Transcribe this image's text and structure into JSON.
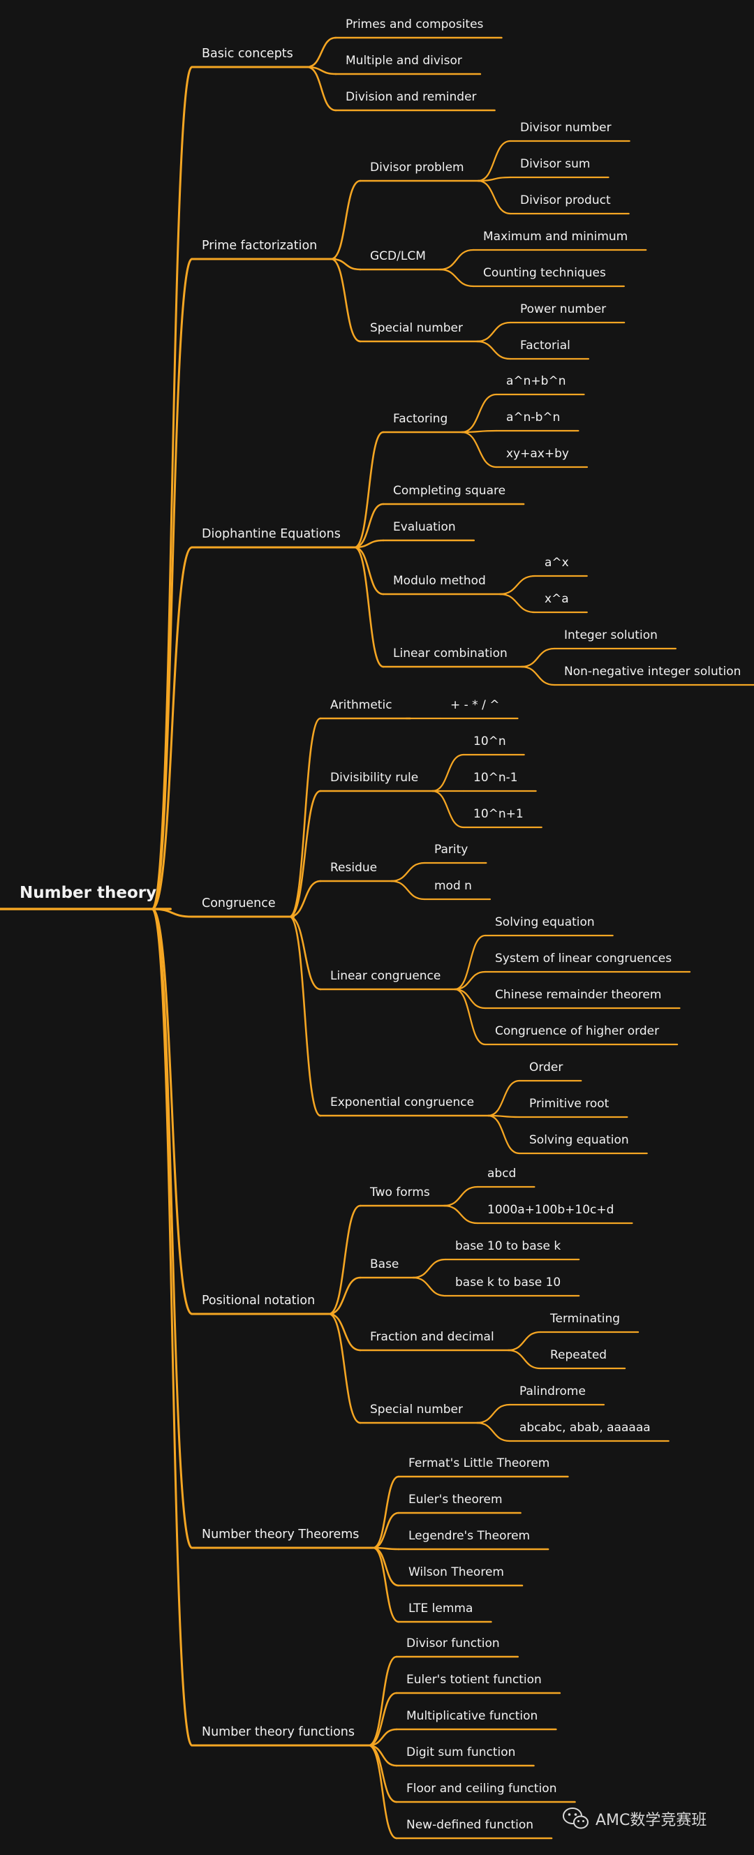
{
  "colors": {
    "background": "#141414",
    "branch": "#f5a623",
    "text": "#f2f2f2"
  },
  "mindmap": {
    "label": "Number theory",
    "children": [
      {
        "label": "Basic concepts",
        "children": [
          {
            "label": "Primes and composites"
          },
          {
            "label": "Multiple and divisor"
          },
          {
            "label": "Division and reminder"
          }
        ]
      },
      {
        "label": "Prime factorization",
        "children": [
          {
            "label": "Divisor problem",
            "children": [
              {
                "label": "Divisor number"
              },
              {
                "label": "Divisor sum"
              },
              {
                "label": "Divisor product"
              }
            ]
          },
          {
            "label": "GCD/LCM",
            "children": [
              {
                "label": "Maximum and minimum"
              },
              {
                "label": "Counting techniques"
              }
            ]
          },
          {
            "label": "Special number",
            "children": [
              {
                "label": "Power number"
              },
              {
                "label": "Factorial"
              }
            ]
          }
        ]
      },
      {
        "label": "Diophantine Equations",
        "children": [
          {
            "label": "Factoring",
            "children": [
              {
                "label": "a^n+b^n"
              },
              {
                "label": "a^n-b^n"
              },
              {
                "label": "xy+ax+by"
              }
            ]
          },
          {
            "label": "Completing square"
          },
          {
            "label": "Evaluation"
          },
          {
            "label": "Modulo method",
            "children": [
              {
                "label": "a^x"
              },
              {
                "label": "x^a"
              }
            ]
          },
          {
            "label": "Linear combination",
            "children": [
              {
                "label": "Integer solution"
              },
              {
                "label": "Non-negative integer solution"
              }
            ]
          }
        ]
      },
      {
        "label": "Congruence",
        "children": [
          {
            "label": "Arithmetic",
            "children": [
              {
                "label": "+ - * / ^"
              }
            ]
          },
          {
            "label": "Divisibility rule",
            "children": [
              {
                "label": "10^n"
              },
              {
                "label": "10^n-1"
              },
              {
                "label": "10^n+1"
              }
            ]
          },
          {
            "label": "Residue",
            "children": [
              {
                "label": "Parity"
              },
              {
                "label": "mod n"
              }
            ]
          },
          {
            "label": "Linear congruence",
            "children": [
              {
                "label": "Solving equation"
              },
              {
                "label": "System of linear congruences"
              },
              {
                "label": "Chinese remainder theorem"
              },
              {
                "label": "Congruence of higher order"
              }
            ]
          },
          {
            "label": "Exponential congruence",
            "children": [
              {
                "label": "Order"
              },
              {
                "label": "Primitive root"
              },
              {
                "label": "Solving equation"
              }
            ]
          }
        ]
      },
      {
        "label": "Positional notation",
        "children": [
          {
            "label": "Two forms",
            "children": [
              {
                "label": "abcd"
              },
              {
                "label": "1000a+100b+10c+d"
              }
            ]
          },
          {
            "label": "Base",
            "children": [
              {
                "label": "base 10 to base k"
              },
              {
                "label": "base k to base 10"
              }
            ]
          },
          {
            "label": "Fraction and decimal",
            "children": [
              {
                "label": "Terminating"
              },
              {
                "label": "Repeated"
              }
            ]
          },
          {
            "label": "Special number",
            "children": [
              {
                "label": "Palindrome"
              },
              {
                "label": "abcabc, abab, aaaaaa"
              }
            ]
          }
        ]
      },
      {
        "label": "Number theory Theorems",
        "children": [
          {
            "label": "Fermat's Little Theorem"
          },
          {
            "label": "Euler's theorem"
          },
          {
            "label": "Legendre's Theorem"
          },
          {
            "label": "Wilson Theorem"
          },
          {
            "label": "LTE lemma"
          }
        ]
      },
      {
        "label": "Number theory functions",
        "children": [
          {
            "label": "Divisor function"
          },
          {
            "label": "Euler's totient function"
          },
          {
            "label": "Multiplicative function"
          },
          {
            "label": "Digit sum function"
          },
          {
            "label": "Floor and ceiling function"
          },
          {
            "label": "New-defined function"
          }
        ]
      }
    ]
  },
  "watermark": {
    "icon": "wechat-icon",
    "text": "AMC数学竞赛班"
  }
}
